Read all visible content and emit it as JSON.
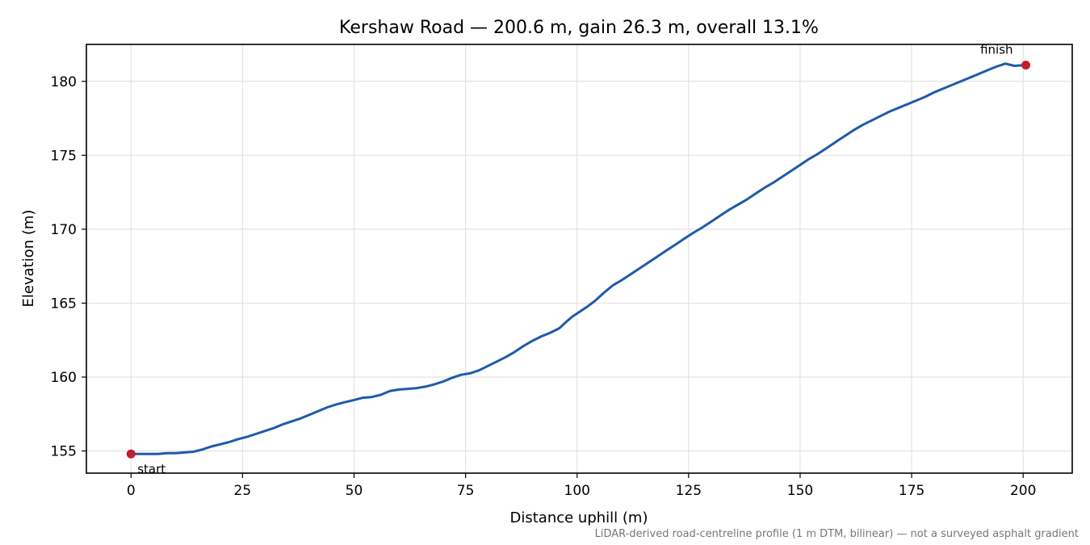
{
  "chart_data": {
    "type": "line",
    "title": "Kershaw Road — 200.6 m, gain 26.3 m, overall 13.1%",
    "xlabel": "Distance uphill (m)",
    "ylabel": "Elevation (m)",
    "xlim": [
      -10,
      211
    ],
    "ylim": [
      153.5,
      182.5
    ],
    "xticks": [
      0,
      25,
      50,
      75,
      100,
      125,
      150,
      175,
      200
    ],
    "yticks": [
      155,
      160,
      165,
      170,
      175,
      180
    ],
    "grid": true,
    "series": [
      {
        "color": "#1f5aa8",
        "x": [
          0,
          2,
          4,
          6,
          8,
          10,
          12,
          14,
          16,
          18,
          20,
          22,
          24,
          26,
          28,
          30,
          32,
          34,
          36,
          38,
          40,
          42,
          44,
          46,
          48,
          50,
          52,
          54,
          56,
          58,
          60,
          62,
          64,
          66,
          68,
          70,
          72,
          74,
          76,
          78,
          80,
          82,
          84,
          86,
          88,
          90,
          92,
          94,
          96,
          98,
          99,
          100,
          102,
          104,
          106,
          108,
          110,
          112,
          114,
          116,
          118,
          120,
          122,
          124,
          126,
          128,
          130,
          132,
          134,
          136,
          138,
          140,
          142,
          144,
          146,
          148,
          150,
          152,
          154,
          156,
          158,
          160,
          162,
          164,
          166,
          168,
          170,
          172,
          174,
          176,
          178,
          180,
          182,
          184,
          186,
          188,
          190,
          192,
          194,
          196,
          198,
          200.6
        ],
        "y": [
          154.8,
          154.8,
          154.8,
          154.8,
          154.85,
          154.85,
          154.9,
          154.95,
          155.1,
          155.3,
          155.45,
          155.6,
          155.8,
          155.95,
          156.15,
          156.35,
          156.55,
          156.8,
          157.0,
          157.2,
          157.45,
          157.7,
          157.95,
          158.15,
          158.3,
          158.45,
          158.6,
          158.65,
          158.8,
          159.05,
          159.15,
          159.2,
          159.25,
          159.35,
          159.5,
          159.7,
          159.95,
          160.15,
          160.25,
          160.45,
          160.75,
          161.05,
          161.35,
          161.7,
          162.1,
          162.45,
          162.75,
          163.0,
          163.3,
          163.85,
          164.1,
          164.3,
          164.7,
          165.15,
          165.7,
          166.2,
          166.55,
          166.95,
          167.35,
          167.75,
          168.15,
          168.55,
          168.95,
          169.35,
          169.75,
          170.1,
          170.5,
          170.9,
          171.3,
          171.65,
          172.0,
          172.4,
          172.8,
          173.15,
          173.55,
          173.95,
          174.35,
          174.75,
          175.1,
          175.5,
          175.9,
          176.3,
          176.7,
          177.05,
          177.35,
          177.65,
          177.95,
          178.2,
          178.45,
          178.7,
          178.95,
          179.25,
          179.5,
          179.75,
          180.0,
          180.25,
          180.5,
          180.75,
          181.0,
          181.2,
          181.05,
          181.1
        ]
      }
    ],
    "markers": [
      {
        "label": "start",
        "x": 0,
        "y": 154.8,
        "color": "#c41e2e"
      },
      {
        "label": "finish",
        "x": 200.6,
        "y": 181.1,
        "color": "#c41e2e"
      }
    ],
    "footnote": "LiDAR-derived road-centreline profile (1 m DTM, bilinear) — not a surveyed asphalt gradient"
  }
}
